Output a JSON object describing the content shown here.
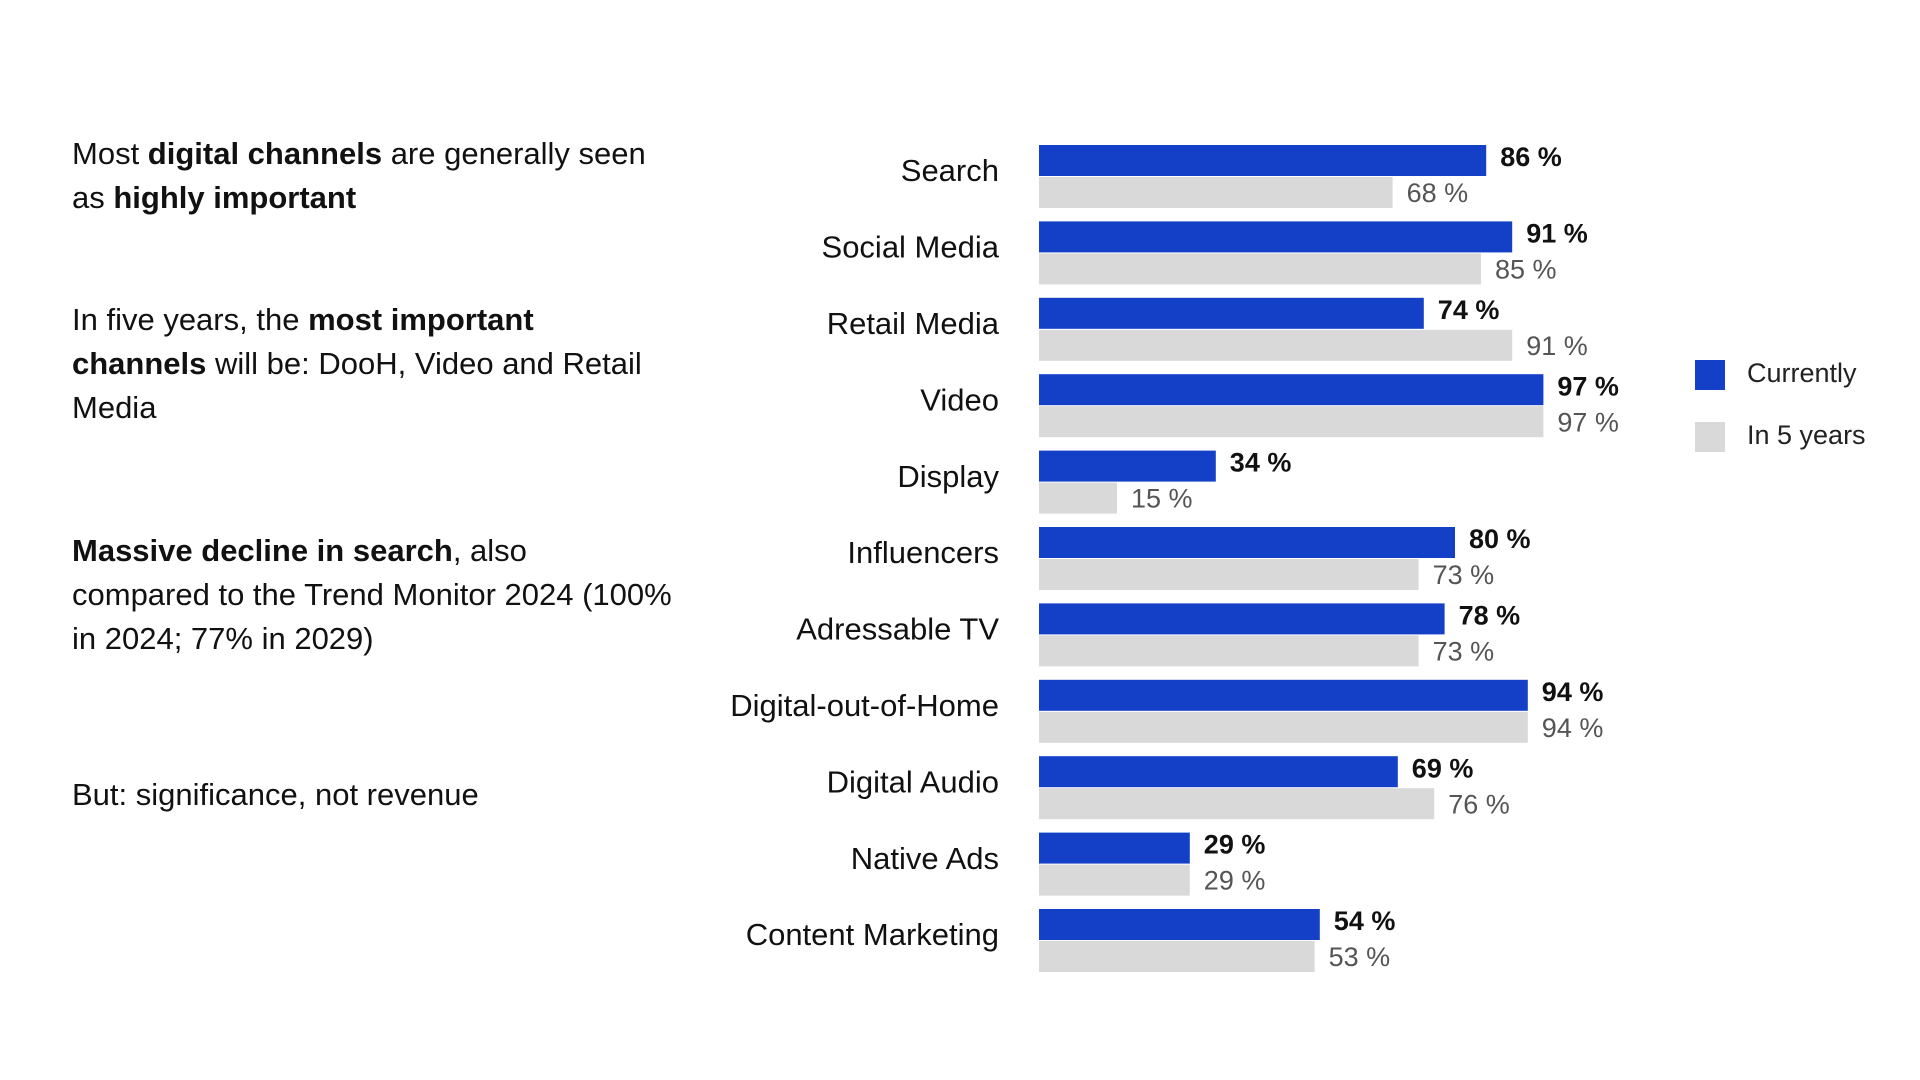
{
  "text_panel": {
    "paragraphs": [
      {
        "runs": [
          {
            "text": "Most ",
            "bold": false
          },
          {
            "text": "digital channels",
            "bold": true
          },
          {
            "text": " are generally seen as ",
            "bold": false
          },
          {
            "text": "highly important",
            "bold": true
          }
        ]
      },
      {
        "runs": [
          {
            "text": "In five years, the ",
            "bold": false
          },
          {
            "text": "most important channels",
            "bold": true
          },
          {
            "text": " will be: DooH, Video and Retail Media",
            "bold": false
          }
        ]
      },
      {
        "runs": [
          {
            "text": "Massive decline in search",
            "bold": true
          },
          {
            "text": ", also compared to the Trend Monitor 2024 (100% in 2024; 77% in 2029)",
            "bold": false
          }
        ]
      },
      {
        "runs": [
          {
            "text": "But: significance, not revenue",
            "bold": false
          }
        ]
      }
    ]
  },
  "chart_data": {
    "type": "bar",
    "orientation": "horizontal",
    "categories": [
      "Search",
      "Social Media",
      "Retail Media",
      "Video",
      "Display",
      "Influencers",
      "Adressable TV",
      "Digital-out-of-Home",
      "Digital Audio",
      "Native Ads",
      "Content Marketing"
    ],
    "series": [
      {
        "name": "Currently",
        "color": "#1440c8",
        "values": [
          86,
          91,
          74,
          97,
          34,
          80,
          78,
          94,
          69,
          29,
          54
        ],
        "value_labels": [
          "86 %",
          "91 %",
          "74 %",
          "97 %",
          "34 %",
          "80 %",
          "78 %",
          "94 %",
          "69 %",
          "29 %",
          "54 %"
        ]
      },
      {
        "name": "In 5 years",
        "color": "#d9d9d9",
        "values": [
          68,
          85,
          91,
          97,
          15,
          73,
          73,
          94,
          76,
          29,
          53
        ],
        "value_labels": [
          "68 %",
          "85 %",
          "91 %",
          "97 %",
          "15 %",
          "73 %",
          "73 %",
          "94 %",
          "76 %",
          "29 %",
          "53 %"
        ]
      }
    ],
    "legend": "right"
  }
}
